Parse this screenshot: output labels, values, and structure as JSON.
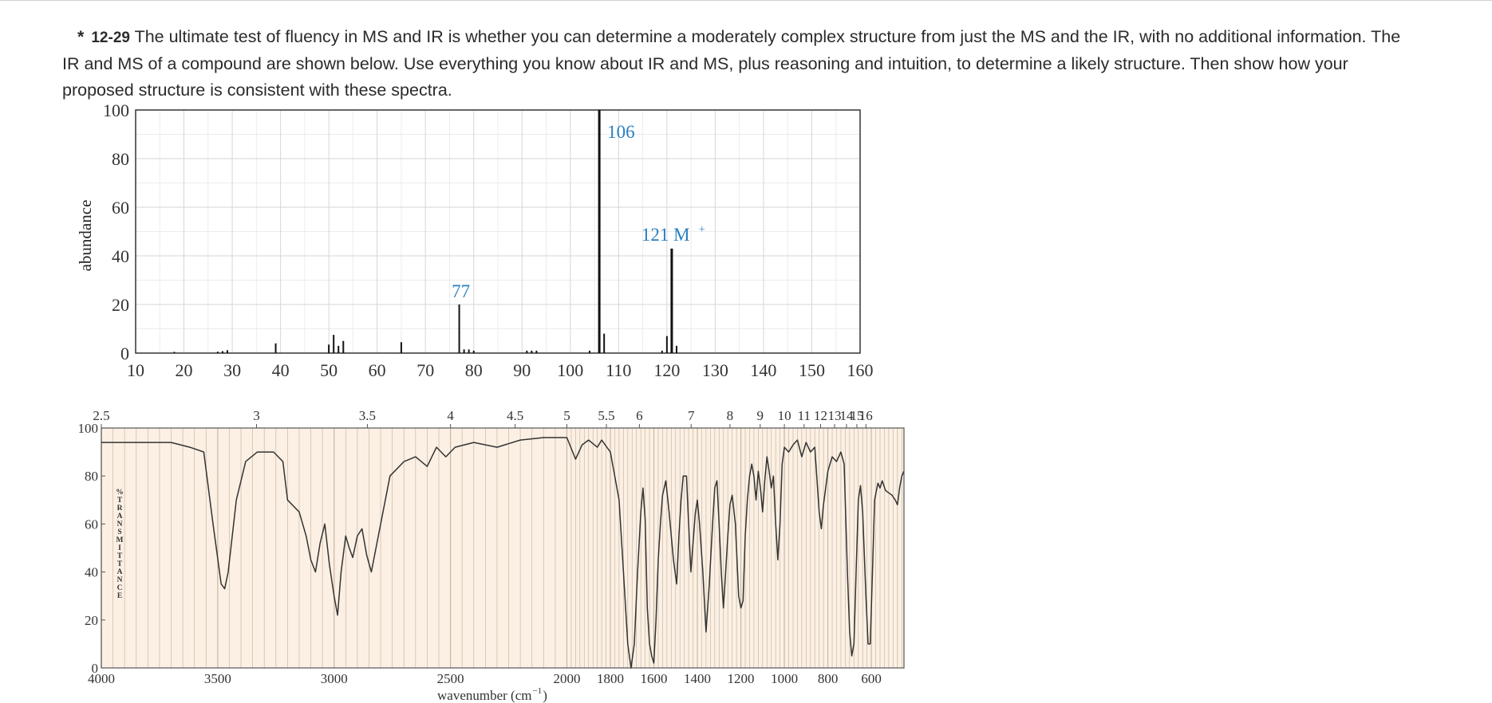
{
  "problem": {
    "star": "*",
    "number": "12-29",
    "line1": "The ultimate test of fluency in MS and IR is whether you can determine a moderately complex structure from just the MS and the IR, with no additional information. The",
    "line2": "IR and MS of a compound are shown below. Use everything you know about IR and MS, plus reasoning and intuition, to determine a likely structure. Then show how your",
    "line3": "proposed structure is consistent with these spectra."
  },
  "colors": {
    "annotation": "#2a7fc0",
    "ir_background": "#fbf0e3",
    "ir_grid": "#c9b9a6",
    "ms_grid": "#d6d6d6"
  },
  "chart_data": [
    {
      "type": "bar",
      "ylabel": "abundance",
      "xlim": [
        10,
        160
      ],
      "ylim": [
        0,
        100
      ],
      "x_ticks": [
        10,
        20,
        30,
        40,
        50,
        60,
        70,
        80,
        90,
        100,
        110,
        120,
        130,
        140,
        150,
        160
      ],
      "y_ticks": [
        0,
        20,
        40,
        60,
        80,
        100
      ],
      "grid": true,
      "x": [
        18,
        27,
        28,
        29,
        39,
        50,
        51,
        52,
        53,
        65,
        77,
        78,
        79,
        80,
        91,
        92,
        93,
        104,
        106,
        107,
        119,
        120,
        121,
        122
      ],
      "values": [
        0.5,
        0.6,
        0.8,
        1.2,
        4,
        3.5,
        7.5,
        3,
        5,
        4.5,
        20,
        1.5,
        1.5,
        1,
        1,
        1,
        1,
        1,
        100,
        8,
        1,
        7,
        43,
        3
      ],
      "annotations": [
        {
          "text": "106",
          "x": 106
        },
        {
          "text": "77",
          "x": 77
        },
        {
          "text": "121 M",
          "sup": "+",
          "x": 121
        }
      ]
    },
    {
      "type": "line",
      "xlabel": "wavenumber (cm",
      "xlabel_sup": "−1",
      "xlabel_end": ")",
      "ylabel": "%TRANSMITTANCE",
      "ylim": [
        0,
        100
      ],
      "y_ticks": [
        0,
        20,
        40,
        60,
        80,
        100
      ],
      "wavenumber_ticks": [
        4000,
        3500,
        3000,
        2500,
        2000,
        1800,
        1600,
        1400,
        1200,
        1000,
        800,
        600
      ],
      "micron_ticks": [
        "2.5",
        "3",
        "3.5",
        "4",
        "4.5",
        "5",
        "5.5",
        "6",
        "7",
        "8",
        "9",
        "10",
        "11",
        "12",
        "13",
        "14",
        "15",
        "16"
      ],
      "grid": true,
      "points": [
        [
          4000,
          94
        ],
        [
          3700,
          94
        ],
        [
          3620,
          92
        ],
        [
          3560,
          90
        ],
        [
          3520,
          60
        ],
        [
          3485,
          35
        ],
        [
          3470,
          33
        ],
        [
          3455,
          40
        ],
        [
          3420,
          70
        ],
        [
          3380,
          86
        ],
        [
          3330,
          90
        ],
        [
          3260,
          90
        ],
        [
          3220,
          86
        ],
        [
          3200,
          70
        ],
        [
          3150,
          65
        ],
        [
          3120,
          55
        ],
        [
          3100,
          45
        ],
        [
          3080,
          40
        ],
        [
          3060,
          52
        ],
        [
          3040,
          60
        ],
        [
          3020,
          43
        ],
        [
          3000,
          30
        ],
        [
          2985,
          22
        ],
        [
          2970,
          40
        ],
        [
          2950,
          55
        ],
        [
          2935,
          50
        ],
        [
          2920,
          46
        ],
        [
          2900,
          55
        ],
        [
          2880,
          58
        ],
        [
          2860,
          47
        ],
        [
          2840,
          40
        ],
        [
          2800,
          60
        ],
        [
          2760,
          80
        ],
        [
          2700,
          86
        ],
        [
          2650,
          88
        ],
        [
          2600,
          84
        ],
        [
          2560,
          92
        ],
        [
          2520,
          88
        ],
        [
          2480,
          92
        ],
        [
          2400,
          94
        ],
        [
          2300,
          92
        ],
        [
          2200,
          95
        ],
        [
          2100,
          96
        ],
        [
          2000,
          96
        ],
        [
          1960,
          87
        ],
        [
          1930,
          93
        ],
        [
          1900,
          95
        ],
        [
          1860,
          92
        ],
        [
          1840,
          95
        ],
        [
          1800,
          90
        ],
        [
          1780,
          80
        ],
        [
          1760,
          70
        ],
        [
          1740,
          40
        ],
        [
          1720,
          10
        ],
        [
          1705,
          0
        ],
        [
          1690,
          10
        ],
        [
          1675,
          40
        ],
        [
          1660,
          65
        ],
        [
          1650,
          75
        ],
        [
          1640,
          62
        ],
        [
          1630,
          25
        ],
        [
          1620,
          10
        ],
        [
          1610,
          5
        ],
        [
          1600,
          2
        ],
        [
          1590,
          20
        ],
        [
          1580,
          45
        ],
        [
          1570,
          60
        ],
        [
          1560,
          72
        ],
        [
          1545,
          78
        ],
        [
          1530,
          65
        ],
        [
          1510,
          45
        ],
        [
          1495,
          35
        ],
        [
          1485,
          55
        ],
        [
          1475,
          70
        ],
        [
          1465,
          80
        ],
        [
          1450,
          80
        ],
        [
          1440,
          60
        ],
        [
          1430,
          40
        ],
        [
          1420,
          52
        ],
        [
          1410,
          64
        ],
        [
          1400,
          70
        ],
        [
          1390,
          60
        ],
        [
          1375,
          40
        ],
        [
          1360,
          15
        ],
        [
          1345,
          35
        ],
        [
          1330,
          60
        ],
        [
          1320,
          75
        ],
        [
          1310,
          78
        ],
        [
          1300,
          60
        ],
        [
          1290,
          40
        ],
        [
          1280,
          25
        ],
        [
          1270,
          40
        ],
        [
          1260,
          55
        ],
        [
          1250,
          68
        ],
        [
          1240,
          72
        ],
        [
          1225,
          60
        ],
        [
          1210,
          30
        ],
        [
          1200,
          25
        ],
        [
          1190,
          28
        ],
        [
          1180,
          55
        ],
        [
          1170,
          70
        ],
        [
          1160,
          80
        ],
        [
          1150,
          85
        ],
        [
          1140,
          80
        ],
        [
          1130,
          70
        ],
        [
          1120,
          82
        ],
        [
          1110,
          75
        ],
        [
          1100,
          65
        ],
        [
          1090,
          78
        ],
        [
          1080,
          88
        ],
        [
          1070,
          82
        ],
        [
          1060,
          75
        ],
        [
          1050,
          80
        ],
        [
          1040,
          60
        ],
        [
          1030,
          45
        ],
        [
          1020,
          60
        ],
        [
          1010,
          85
        ],
        [
          1000,
          92
        ],
        [
          980,
          90
        ],
        [
          960,
          93
        ],
        [
          940,
          95
        ],
        [
          920,
          88
        ],
        [
          900,
          94
        ],
        [
          880,
          90
        ],
        [
          860,
          92
        ],
        [
          840,
          65
        ],
        [
          830,
          58
        ],
        [
          820,
          68
        ],
        [
          800,
          82
        ],
        [
          780,
          88
        ],
        [
          760,
          86
        ],
        [
          740,
          90
        ],
        [
          725,
          85
        ],
        [
          710,
          40
        ],
        [
          700,
          15
        ],
        [
          690,
          5
        ],
        [
          680,
          10
        ],
        [
          670,
          40
        ],
        [
          660,
          70
        ],
        [
          650,
          76
        ],
        [
          640,
          65
        ],
        [
          625,
          30
        ],
        [
          615,
          10
        ],
        [
          605,
          10
        ],
        [
          595,
          40
        ],
        [
          585,
          70
        ],
        [
          570,
          77
        ],
        [
          560,
          75
        ],
        [
          550,
          78
        ],
        [
          535,
          74
        ],
        [
          520,
          73
        ],
        [
          505,
          72
        ],
        [
          490,
          70
        ],
        [
          480,
          68
        ],
        [
          470,
          75
        ],
        [
          460,
          80
        ],
        [
          450,
          82
        ]
      ]
    }
  ]
}
